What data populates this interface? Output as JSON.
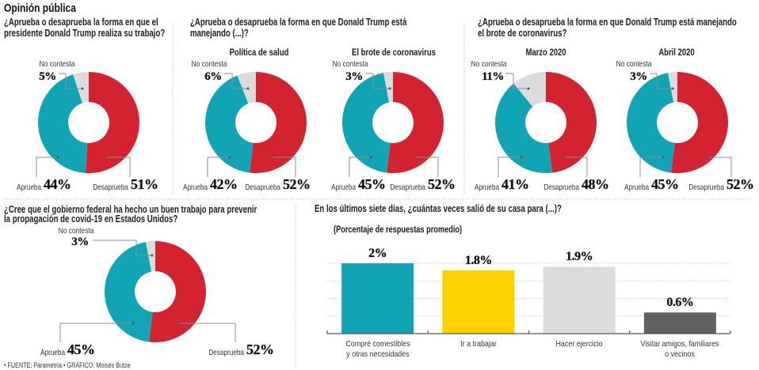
{
  "page_title": "Opinión pública",
  "questions": [
    {
      "lines": [
        "¿Aprueba o desaprueba la forma en que el",
        "presidente Donald Trump realiza su trabajo?"
      ]
    },
    {
      "lines": [
        "¿Aprueba o desaprueba la forma en que Donald Trump está",
        "manejando (...)?"
      ]
    },
    {
      "lines": [
        "¿Aprueba o desaprueba la forma en que Donald Trump está manejando",
        "el brote de coronavirus?"
      ]
    },
    {
      "lines": [
        "¿Cree que el gobierno federal ha hecho un buen trabajo para prevenir",
        "la propagación de covid-19 en Estados Unidos?"
      ]
    },
    {
      "lines": [
        "En los últimos siete días, ¿cuántas veces salió de su casa para (...)?"
      ]
    }
  ],
  "footer": {
    "bullet": "•",
    "source_label": "FUENTE:",
    "source": "Parametría",
    "graphic_label": "GRÁFICO:",
    "graphic": "Moisés Butze"
  },
  "colors": {
    "desaprueba": "#d42330",
    "aprueba": "#11a3b6",
    "no_contesta": "#dcdcde",
    "bar_yellow": "#fdd200",
    "bar_dark_gray": "#616163"
  },
  "chart_data": [
    {
      "type": "pie",
      "subtype": "donut",
      "title": "¿Aprueba o desaprueba la forma en que el presidente Donald Trump realiza su trabajo?",
      "subtitle": "",
      "categories": [
        "Desaprueba",
        "Aprueba",
        "No contesta"
      ],
      "values": [
        51,
        44,
        5
      ],
      "value_labels": [
        "51%",
        "44%",
        "5%"
      ],
      "colors": [
        "#d42330",
        "#11a3b6",
        "#dcdcde"
      ]
    },
    {
      "type": "pie",
      "subtype": "donut",
      "title": "¿Aprueba o desaprueba la forma en que Donald Trump está manejando (...)?",
      "subtitle": "Política de salud",
      "categories": [
        "Desaprueba",
        "Aprueba",
        "No contesta"
      ],
      "values": [
        52,
        42,
        6
      ],
      "value_labels": [
        "52%",
        "42%",
        "6%"
      ],
      "colors": [
        "#d42330",
        "#11a3b6",
        "#dcdcde"
      ]
    },
    {
      "type": "pie",
      "subtype": "donut",
      "title": "¿Aprueba o desaprueba la forma en que Donald Trump está manejando (...)?",
      "subtitle": "El brote de coronavirus",
      "categories": [
        "Desaprueba",
        "Aprueba",
        "No contesta"
      ],
      "values": [
        52,
        45,
        3
      ],
      "value_labels": [
        "52%",
        "45%",
        "3%"
      ],
      "colors": [
        "#d42330",
        "#11a3b6",
        "#dcdcde"
      ]
    },
    {
      "type": "pie",
      "subtype": "donut",
      "title": "¿Aprueba o desaprueba la forma en que Donald Trump está manejando el brote de coronavirus?",
      "subtitle": "Marzo 2020",
      "categories": [
        "Desaprueba",
        "Aprueba",
        "No contesta"
      ],
      "values": [
        48,
        41,
        11
      ],
      "value_labels": [
        "48%",
        "41%",
        "11%"
      ],
      "colors": [
        "#d42330",
        "#11a3b6",
        "#dcdcde"
      ]
    },
    {
      "type": "pie",
      "subtype": "donut",
      "title": "¿Aprueba o desaprueba la forma en que Donald Trump está manejando el brote de coronavirus?",
      "subtitle": "Abril 2020",
      "categories": [
        "Desaprueba",
        "Aprueba",
        "No contesta"
      ],
      "values": [
        52,
        45,
        3
      ],
      "value_labels": [
        "52%",
        "45%",
        "3%"
      ],
      "colors": [
        "#d42330",
        "#11a3b6",
        "#dcdcde"
      ]
    },
    {
      "type": "pie",
      "subtype": "donut",
      "title": "¿Cree que el gobierno federal ha hecho un buen trabajo para prevenir la propagación de covid-19 en Estados Unidos?",
      "subtitle": "",
      "categories": [
        "Desaprueba",
        "Aprueba",
        "No contesta"
      ],
      "values": [
        52,
        45,
        3
      ],
      "value_labels": [
        "52%",
        "45%",
        "3%"
      ],
      "colors": [
        "#d42330",
        "#11a3b6",
        "#dcdcde"
      ]
    },
    {
      "type": "bar",
      "title": "En los últimos siete días, ¿cuántas veces salió de su casa para (...)?",
      "subtitle": "(Porcentaje de respuestas promedio)",
      "categories": [
        "Compré comestibles y otras necesidades",
        "Ir a trabajar",
        "Hacer ejercicio",
        "Visitar amigos, familiares o vecinos"
      ],
      "category_lines": [
        [
          "Compré comestibles",
          "y otras necesidades"
        ],
        [
          "Ir a trabajar"
        ],
        [
          "Hacer ejercicio"
        ],
        [
          "Visitar amigos, familiares",
          "o vecinos"
        ]
      ],
      "values": [
        2,
        1.8,
        1.9,
        0.6
      ],
      "value_labels": [
        "2%",
        "1.8%",
        "1.9%",
        "0.6%"
      ],
      "colors": [
        "#11a3b6",
        "#fdd200",
        "#dcdcde",
        "#616163"
      ],
      "xlabel": "",
      "ylabel": "",
      "ylim": [
        0,
        2
      ],
      "grid": true,
      "grid_step": 0.5,
      "legend": "none"
    }
  ]
}
